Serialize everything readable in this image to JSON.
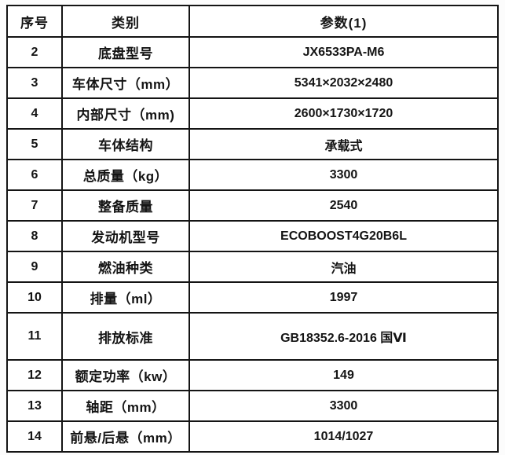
{
  "table": {
    "headers": [
      "序号",
      "类别",
      "参数(1)"
    ],
    "rows": [
      {
        "no": "2",
        "label": "底盘型号",
        "value": "JX6533PA-M6"
      },
      {
        "no": "3",
        "label": "车体尺寸（mm）",
        "value": "5341×2032×2480"
      },
      {
        "no": "4",
        "label": "内部尺寸（mm)",
        "value": "2600×1730×1720"
      },
      {
        "no": "5",
        "label": "车体结构",
        "value": "承载式"
      },
      {
        "no": "6",
        "label": "总质量（kg）",
        "value": "3300"
      },
      {
        "no": "7",
        "label": "整备质量",
        "value": "2540"
      },
      {
        "no": "8",
        "label": "发动机型号",
        "value": "ECOBOOST4G20B6L"
      },
      {
        "no": "9",
        "label": "燃油种类",
        "value": "汽油"
      },
      {
        "no": "10",
        "label": "排量（ml）",
        "value": "1997"
      },
      {
        "no": "11",
        "label": "排放标准",
        "value": "GB18352.6-2016 国Ⅵ",
        "tall": true
      },
      {
        "no": "12",
        "label": "额定功率（kw）",
        "value": "149"
      },
      {
        "no": "13",
        "label": "轴距（mm）",
        "value": "3300"
      },
      {
        "no": "14",
        "label": "前悬/后悬（mm）",
        "value": "1014/1027"
      }
    ],
    "colors": {
      "border": "#141414",
      "cell_background": "#ffffff",
      "text": "#141414"
    }
  }
}
